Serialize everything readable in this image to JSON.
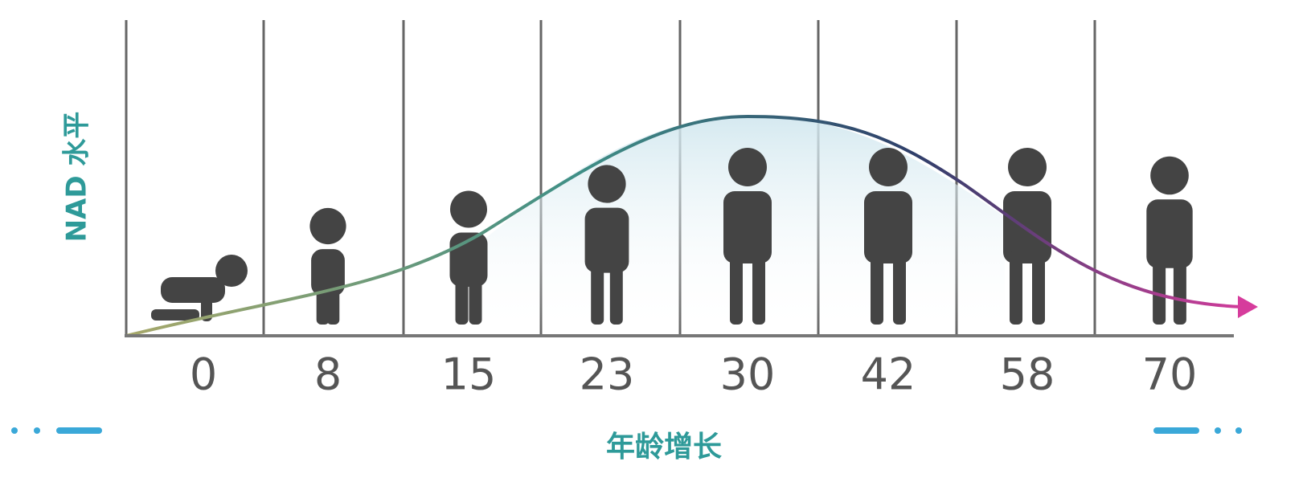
{
  "chart_data": {
    "type": "line",
    "categories": [
      0,
      8,
      15,
      23,
      30,
      42,
      58,
      70
    ],
    "x_label": "年龄增长",
    "y_label": "NAD 水平"
  }
}
